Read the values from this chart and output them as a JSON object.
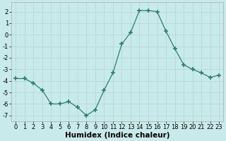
{
  "x": [
    0,
    1,
    2,
    3,
    4,
    5,
    6,
    7,
    8,
    9,
    10,
    11,
    12,
    13,
    14,
    15,
    16,
    17,
    18,
    19,
    20,
    21,
    22,
    23
  ],
  "y": [
    -3.8,
    -3.8,
    -4.2,
    -4.8,
    -6.0,
    -6.0,
    -5.8,
    -6.3,
    -7.0,
    -6.5,
    -4.8,
    -3.3,
    -0.8,
    0.2,
    2.1,
    2.1,
    2.0,
    0.3,
    -1.2,
    -2.6,
    -3.0,
    -3.3,
    -3.7,
    -3.5
  ],
  "line_color": "#2e7d6e",
  "marker": "+",
  "marker_size": 4,
  "bg_color": "#c8eaea",
  "grid_color": "#b8d8d8",
  "xlabel": "Humidex (Indice chaleur)",
  "xlim": [
    -0.5,
    23.5
  ],
  "ylim": [
    -7.5,
    2.8
  ],
  "yticks": [
    -7,
    -6,
    -5,
    -4,
    -3,
    -2,
    -1,
    0,
    1,
    2
  ],
  "xticks": [
    0,
    1,
    2,
    3,
    4,
    5,
    6,
    7,
    8,
    9,
    10,
    11,
    12,
    13,
    14,
    15,
    16,
    17,
    18,
    19,
    20,
    21,
    22,
    23
  ],
  "tick_label_size": 6,
  "xlabel_size": 7.5,
  "xlabel_bold": true,
  "spine_color": "#aaaaaa"
}
